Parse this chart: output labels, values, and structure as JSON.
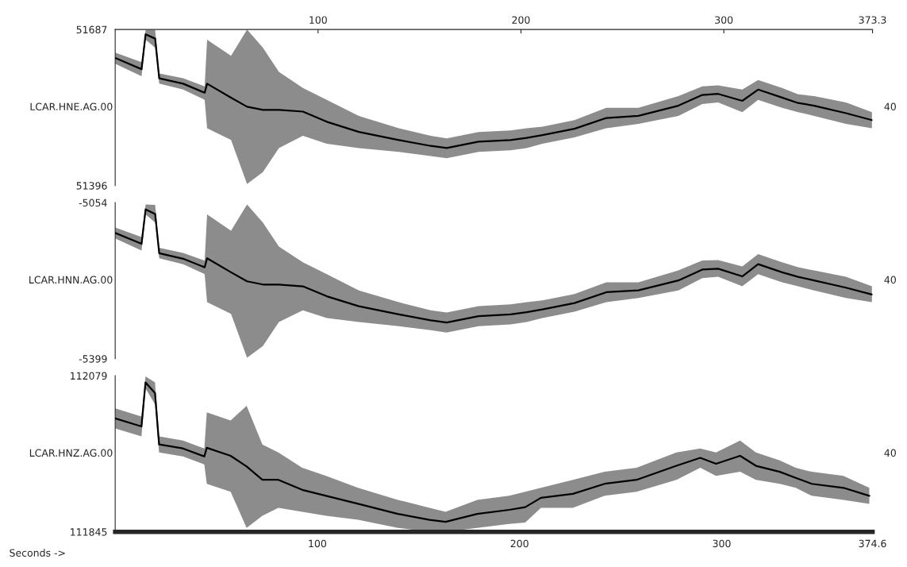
{
  "chart_data": [
    {
      "type": "line",
      "ylabel": "LCAR.HNE.AG.00",
      "annotations": [
        "40"
      ],
      "xlim": [
        0,
        373.3
      ],
      "xticks": [
        100,
        200,
        300,
        373.3
      ],
      "ylim": [
        51396,
        51687
      ],
      "yticks": [
        51396,
        51687
      ],
      "grid": false,
      "line_style": "solid",
      "x": [
        0,
        13,
        15,
        19.7,
        21.7,
        33.5,
        44.1,
        45.3,
        57.1,
        65,
        72.8,
        80.7,
        92.5,
        104.3,
        120.1,
        139.8,
        155.5,
        163.4,
        179.1,
        194.9,
        202.8,
        210.6,
        226.4,
        242.1,
        257.9,
        277.6,
        289.4,
        297.2,
        309.1,
        316.9,
        328.7,
        336.6,
        344.5,
        360.2,
        373
      ],
      "series": [
        {
          "color": "#000000",
          "values": [
            51634,
            51613,
            51678,
            51670,
            51596,
            51586,
            51569,
            51586,
            51560,
            51543,
            51537,
            51537,
            51534,
            51515,
            51496,
            51481,
            51470,
            51466,
            51478,
            51481,
            51485,
            51490,
            51502,
            51522,
            51526,
            51545,
            51565,
            51567,
            51554,
            51575,
            51560,
            51550,
            51545,
            51531,
            51518
          ],
          "upper": [
            51644,
            51626,
            51687,
            51686,
            51605,
            51596,
            51581,
            51668,
            51638,
            51687,
            51653,
            51608,
            51578,
            51556,
            51526,
            51503,
            51489,
            51484,
            51496,
            51499,
            51503,
            51506,
            51518,
            51541,
            51541,
            51563,
            51581,
            51583,
            51575,
            51593,
            51578,
            51566,
            51563,
            51551,
            51533
          ],
          "lower": [
            51623,
            51600,
            51668,
            51653,
            51586,
            51575,
            51556,
            51503,
            51481,
            51399,
            51421,
            51466,
            51489,
            51474,
            51466,
            51459,
            51451,
            51447,
            51459,
            51462,
            51466,
            51474,
            51486,
            51503,
            51511,
            51526,
            51548,
            51551,
            51533,
            51556,
            51541,
            51533,
            51526,
            51511,
            51503
          ]
        }
      ]
    },
    {
      "type": "line",
      "ylabel": "LCAR.HNN.AG.00",
      "annotations": [
        "40"
      ],
      "xlim": [
        0,
        373.3
      ],
      "tick_labels": "y",
      "ylim": [
        -5399,
        -5054
      ],
      "yticks": [
        -5399,
        -5054
      ],
      "grid": false,
      "line_style": "solid",
      "x": [
        0,
        13,
        15,
        19.7,
        21.7,
        33.5,
        44.1,
        45.3,
        57.1,
        65,
        72.8,
        80.7,
        92.5,
        104.3,
        120.1,
        139.8,
        155.5,
        163.4,
        179.1,
        194.9,
        202.8,
        210.6,
        226.4,
        242.1,
        257.9,
        277.6,
        289.4,
        297.2,
        309.1,
        316.9,
        328.7,
        336.6,
        344.5,
        360.2,
        373
      ],
      "series": [
        {
          "color": "#000000",
          "values": [
            -5121,
            -5145,
            -5069,
            -5079,
            -5166,
            -5178,
            -5197,
            -5177,
            -5208,
            -5228,
            -5235,
            -5235,
            -5239,
            -5261,
            -5283,
            -5301,
            -5314,
            -5319,
            -5305,
            -5301,
            -5296,
            -5290,
            -5276,
            -5252,
            -5248,
            -5226,
            -5202,
            -5200,
            -5217,
            -5190,
            -5208,
            -5218,
            -5226,
            -5242,
            -5257
          ],
          "upper": [
            -5109,
            -5130,
            -5058,
            -5059,
            -5154,
            -5165,
            -5182,
            -5080,
            -5116,
            -5058,
            -5098,
            -5151,
            -5186,
            -5212,
            -5248,
            -5274,
            -5292,
            -5297,
            -5283,
            -5279,
            -5274,
            -5270,
            -5256,
            -5230,
            -5230,
            -5204,
            -5182,
            -5181,
            -5195,
            -5168,
            -5186,
            -5197,
            -5204,
            -5218,
            -5239
          ],
          "lower": [
            -5133,
            -5160,
            -5080,
            -5098,
            -5177,
            -5190,
            -5212,
            -5274,
            -5300,
            -5397,
            -5371,
            -5318,
            -5292,
            -5309,
            -5318,
            -5327,
            -5336,
            -5341,
            -5327,
            -5323,
            -5318,
            -5309,
            -5295,
            -5274,
            -5265,
            -5248,
            -5221,
            -5218,
            -5239,
            -5212,
            -5230,
            -5239,
            -5248,
            -5265,
            -5274
          ]
        }
      ]
    },
    {
      "type": "line",
      "ylabel": "LCAR.HNZ.AG.00",
      "xlabel": "Seconds ->",
      "annotations": [
        "40"
      ],
      "xlim": [
        0,
        374.6
      ],
      "xticks": [
        100,
        200,
        300,
        374.6
      ],
      "ylim": [
        111845,
        112079
      ],
      "yticks": [
        111845,
        112079
      ],
      "grid": false,
      "line_style": "solid",
      "x": [
        0,
        13,
        15,
        19.7,
        21.7,
        33.5,
        44.1,
        45.3,
        57.1,
        65,
        72.8,
        80.7,
        92.5,
        104.3,
        120.1,
        139.8,
        155.5,
        163.4,
        179.1,
        194.9,
        202.8,
        210.6,
        226.4,
        242.1,
        257.9,
        277.6,
        289.4,
        297.2,
        309.1,
        316.9,
        328.7,
        336.6,
        344.5,
        360.2,
        373
      ],
      "series": [
        {
          "color": "#000000",
          "values": [
            112015,
            112003,
            112069,
            112053,
            111976,
            111970,
            111958,
            111971,
            111959,
            111943,
            111923,
            111923,
            111908,
            111899,
            111887,
            111872,
            111863,
            111860,
            111872,
            111878,
            111882,
            111896,
            111902,
            111917,
            111923,
            111944,
            111956,
            111947,
            111959,
            111944,
            111935,
            111926,
            111917,
            111911,
            111899
          ],
          "upper": [
            112030,
            112018,
            112078,
            112069,
            111988,
            111982,
            111970,
            112024,
            112012,
            112034,
            111976,
            111964,
            111941,
            111929,
            111911,
            111893,
            111881,
            111875,
            111893,
            111899,
            111905,
            111911,
            111923,
            111935,
            111941,
            111964,
            111970,
            111964,
            111982,
            111964,
            111952,
            111941,
            111935,
            111929,
            111911
          ],
          "lower": [
            112000,
            111988,
            112060,
            112036,
            111964,
            111958,
            111946,
            111917,
            111905,
            111851,
            111869,
            111881,
            111875,
            111869,
            111863,
            111851,
            111845,
            111845,
            111851,
            111857,
            111859,
            111881,
            111881,
            111899,
            111905,
            111923,
            111941,
            111929,
            111935,
            111923,
            111917,
            111911,
            111899,
            111893,
            111887
          ]
        }
      ]
    }
  ]
}
